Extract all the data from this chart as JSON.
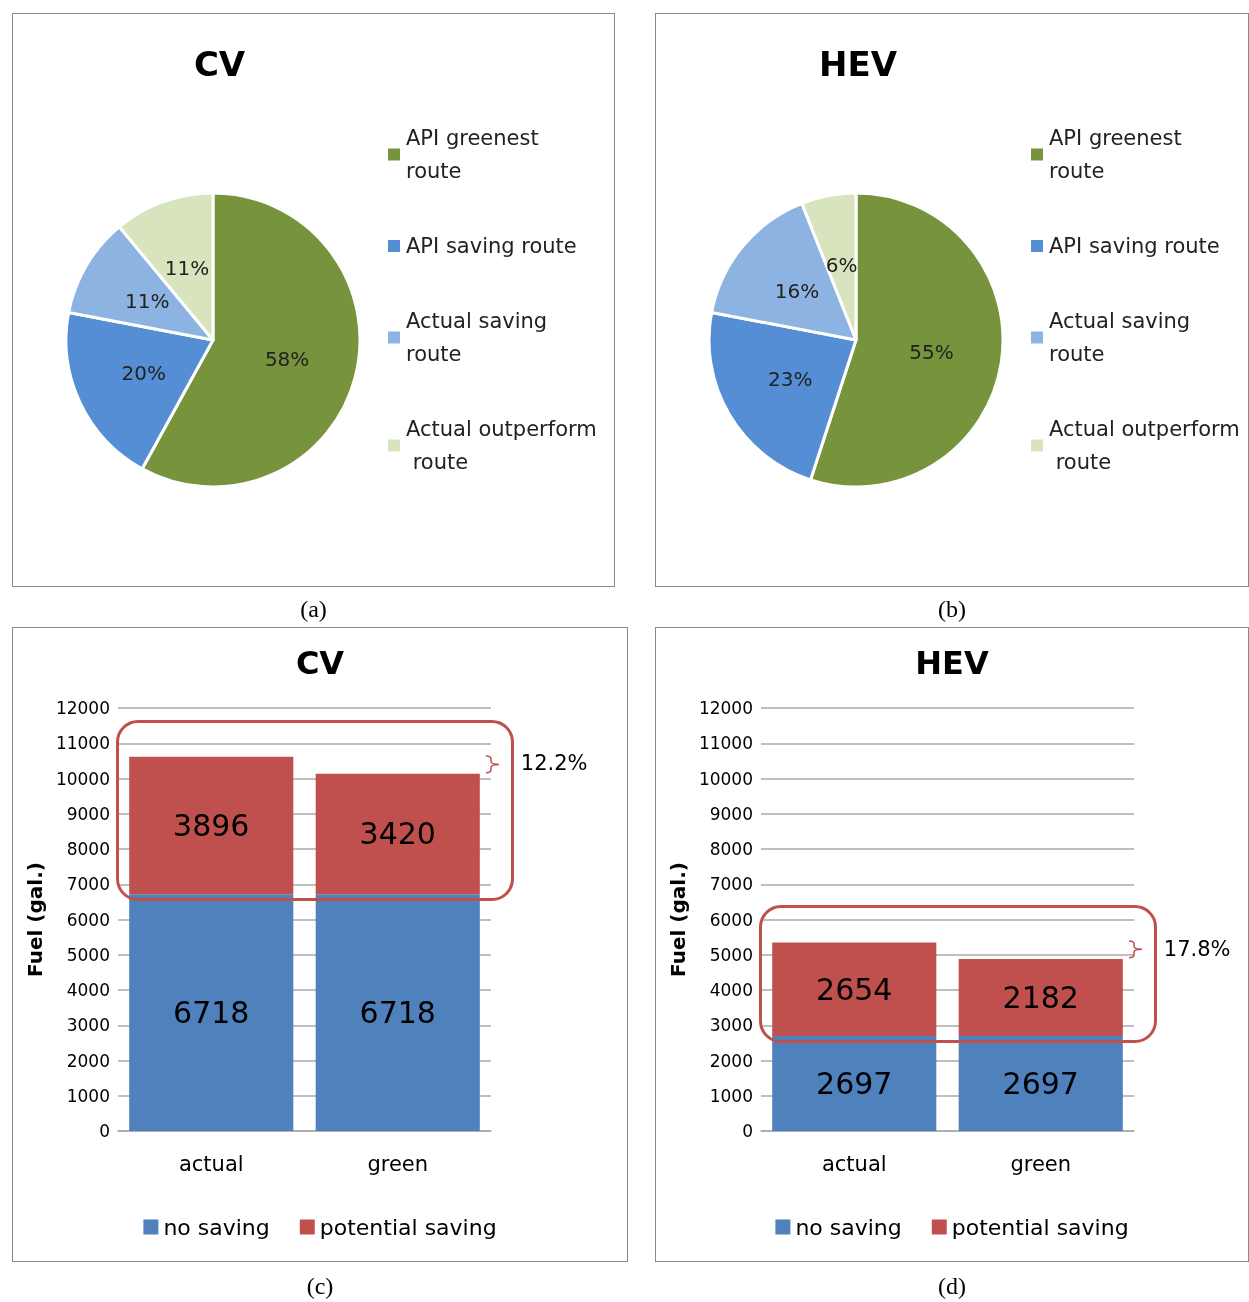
{
  "chart_data": [
    {
      "type": "pie",
      "title": "CV",
      "categories": [
        "API greenest route",
        "API saving route",
        "Actual saving route",
        "Actual outperform route"
      ],
      "values": [
        58,
        20,
        11,
        11
      ],
      "value_labels": [
        "58%",
        "20%",
        "11%",
        "11%"
      ],
      "colors": [
        "#77933c",
        "#558ed5",
        "#8db3e2",
        "#d7e4bd"
      ],
      "legend": "right",
      "annotations": [
        "(a)"
      ]
    },
    {
      "type": "pie",
      "title": "HEV",
      "categories": [
        "API greenest route",
        "API saving route",
        "Actual saving route",
        "Actual outperform route"
      ],
      "values": [
        55,
        23,
        16,
        6
      ],
      "value_labels": [
        "55%",
        "23%",
        "16%",
        "6%"
      ],
      "colors": [
        "#77933c",
        "#558ed5",
        "#8db3e2",
        "#d7e4bd"
      ],
      "legend": "right",
      "annotations": [
        "(b)"
      ]
    },
    {
      "type": "bar",
      "title": "CV",
      "ylabel": "Fuel (gal.)",
      "categories": [
        "actual",
        "green"
      ],
      "stacked": true,
      "series": [
        {
          "name": "no saving",
          "color": "#4f81bd",
          "values": [
            6718,
            6718
          ]
        },
        {
          "name": "potential saving",
          "color": "#c0504d",
          "values": [
            3896,
            3420
          ]
        }
      ],
      "ylim": [
        0,
        12000
      ],
      "yticks": [
        0,
        1000,
        2000,
        3000,
        4000,
        5000,
        6000,
        7000,
        8000,
        9000,
        10000,
        11000,
        12000
      ],
      "grid": "y",
      "legend": "bottom",
      "data_labels": true,
      "annotations": [
        "12.2%",
        "(c)"
      ]
    },
    {
      "type": "bar",
      "title": "HEV",
      "ylabel": "Fuel (gal.)",
      "categories": [
        "actual",
        "green"
      ],
      "stacked": true,
      "series": [
        {
          "name": "no saving",
          "color": "#4f81bd",
          "values": [
            2697,
            2697
          ]
        },
        {
          "name": "potential saving",
          "color": "#c0504d",
          "values": [
            2654,
            2182
          ]
        }
      ],
      "ylim": [
        0,
        12000
      ],
      "yticks": [
        0,
        1000,
        2000,
        3000,
        4000,
        5000,
        6000,
        7000,
        8000,
        9000,
        10000,
        11000,
        12000
      ],
      "grid": "y",
      "legend": "bottom",
      "data_labels": true,
      "annotations": [
        "17.8%",
        "(d)"
      ]
    }
  ]
}
